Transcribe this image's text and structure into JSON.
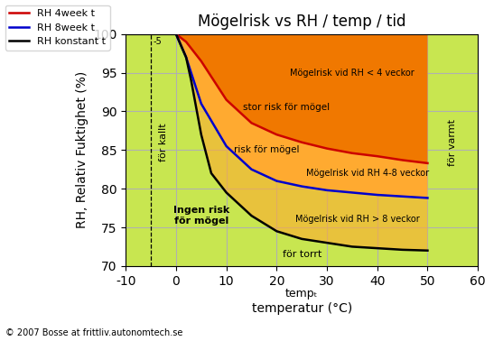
{
  "chart_data": {
    "type": "line",
    "title": "Mögelrisk vs RH / temp / tid",
    "ylabel": "RH, Relativ Fuktighet (%)",
    "xlabel": "temperatur (°C)",
    "xlim": [
      -10,
      60
    ],
    "ylim": [
      70,
      100
    ],
    "xticks": [
      -10,
      0,
      10,
      20,
      30,
      40,
      50,
      60
    ],
    "yticks": [
      70,
      75,
      80,
      85,
      90,
      95,
      100
    ],
    "grid": true,
    "legend": "upper left",
    "background": "#c8e650",
    "series": [
      {
        "name": "RH 4week t",
        "color": "#cc0000",
        "x": [
          0,
          2,
          5,
          10,
          15,
          20,
          25,
          30,
          35,
          40,
          45,
          50
        ],
        "values": [
          100,
          99,
          96.5,
          91.5,
          88.5,
          87,
          86,
          85.2,
          84.6,
          84.2,
          83.7,
          83.3
        ]
      },
      {
        "name": "RH 8week t",
        "color": "#0000cc",
        "x": [
          0,
          2,
          5,
          10,
          15,
          20,
          25,
          30,
          35,
          40,
          45,
          50
        ],
        "values": [
          100,
          97,
          91,
          85.5,
          82.5,
          81,
          80.3,
          79.8,
          79.5,
          79.2,
          79.0,
          78.8
        ]
      },
      {
        "name": "RH konstant t",
        "color": "#000000",
        "x": [
          -10,
          -5,
          -2,
          0,
          2,
          3,
          5,
          7,
          10,
          15,
          20,
          25,
          30,
          35,
          40,
          45,
          50
        ],
        "values": [
          100,
          100,
          100,
          100,
          97,
          94,
          87,
          82,
          79.5,
          76.5,
          74.5,
          73.5,
          73,
          72.5,
          72.3,
          72.1,
          72
        ]
      }
    ],
    "fills": [
      {
        "color": "#f07800",
        "lower": "RH 4week t",
        "upper": null
      },
      {
        "color": "#ffaa30",
        "lower": "RH 8week t",
        "upper": "RH 4week t"
      },
      {
        "color": "#ffaa30",
        "lower": "RH konstant t",
        "upper": "RH 8week t"
      }
    ],
    "reference_lines": [
      {
        "x": -5,
        "label": "-5",
        "line_style": "dashed"
      }
    ],
    "annotations": [
      "Ingen risk\nför mögel",
      "stor risk för mögel",
      "risk för mögel",
      "för torrt",
      "för kallt",
      "för varmt",
      "Mögelrisk vid RH < 4 veckor",
      "Mögelrisk vid RH 4-8 veckor",
      "Mögelrisk vid RH > 8 veckor",
      "tempₜ",
      "© 2007 Bosse at frittliv.autonomtech.se"
    ]
  }
}
